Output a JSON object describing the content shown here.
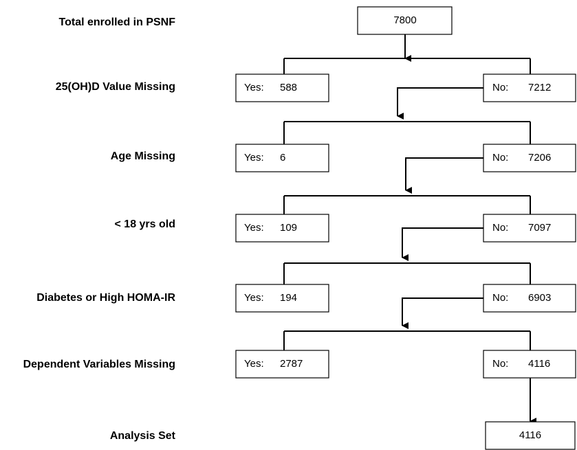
{
  "start": {
    "label": "Total enrolled in PSNF",
    "count": 7800
  },
  "steps": [
    {
      "label": "25(OH)D Value Missing",
      "yes_label": "Yes:",
      "yes_count": 588,
      "no_label": "No:",
      "no_count": 7212
    },
    {
      "label": "Age Missing",
      "yes_label": "Yes:",
      "yes_count": 6,
      "no_label": "No:",
      "no_count": 7206
    },
    {
      "label": "< 18 yrs old",
      "yes_label": "Yes:",
      "yes_count": 109,
      "no_label": "No:",
      "no_count": 7097
    },
    {
      "label": "Diabetes or High HOMA-IR",
      "yes_label": "Yes:",
      "yes_count": 194,
      "no_label": "No:",
      "no_count": 6903
    },
    {
      "label": "Dependent Variables Missing",
      "yes_label": "Yes:",
      "yes_count": 2787,
      "no_label": "No:",
      "no_count": 4116
    }
  ],
  "result": {
    "label": "Analysis Set",
    "count": 4116
  }
}
